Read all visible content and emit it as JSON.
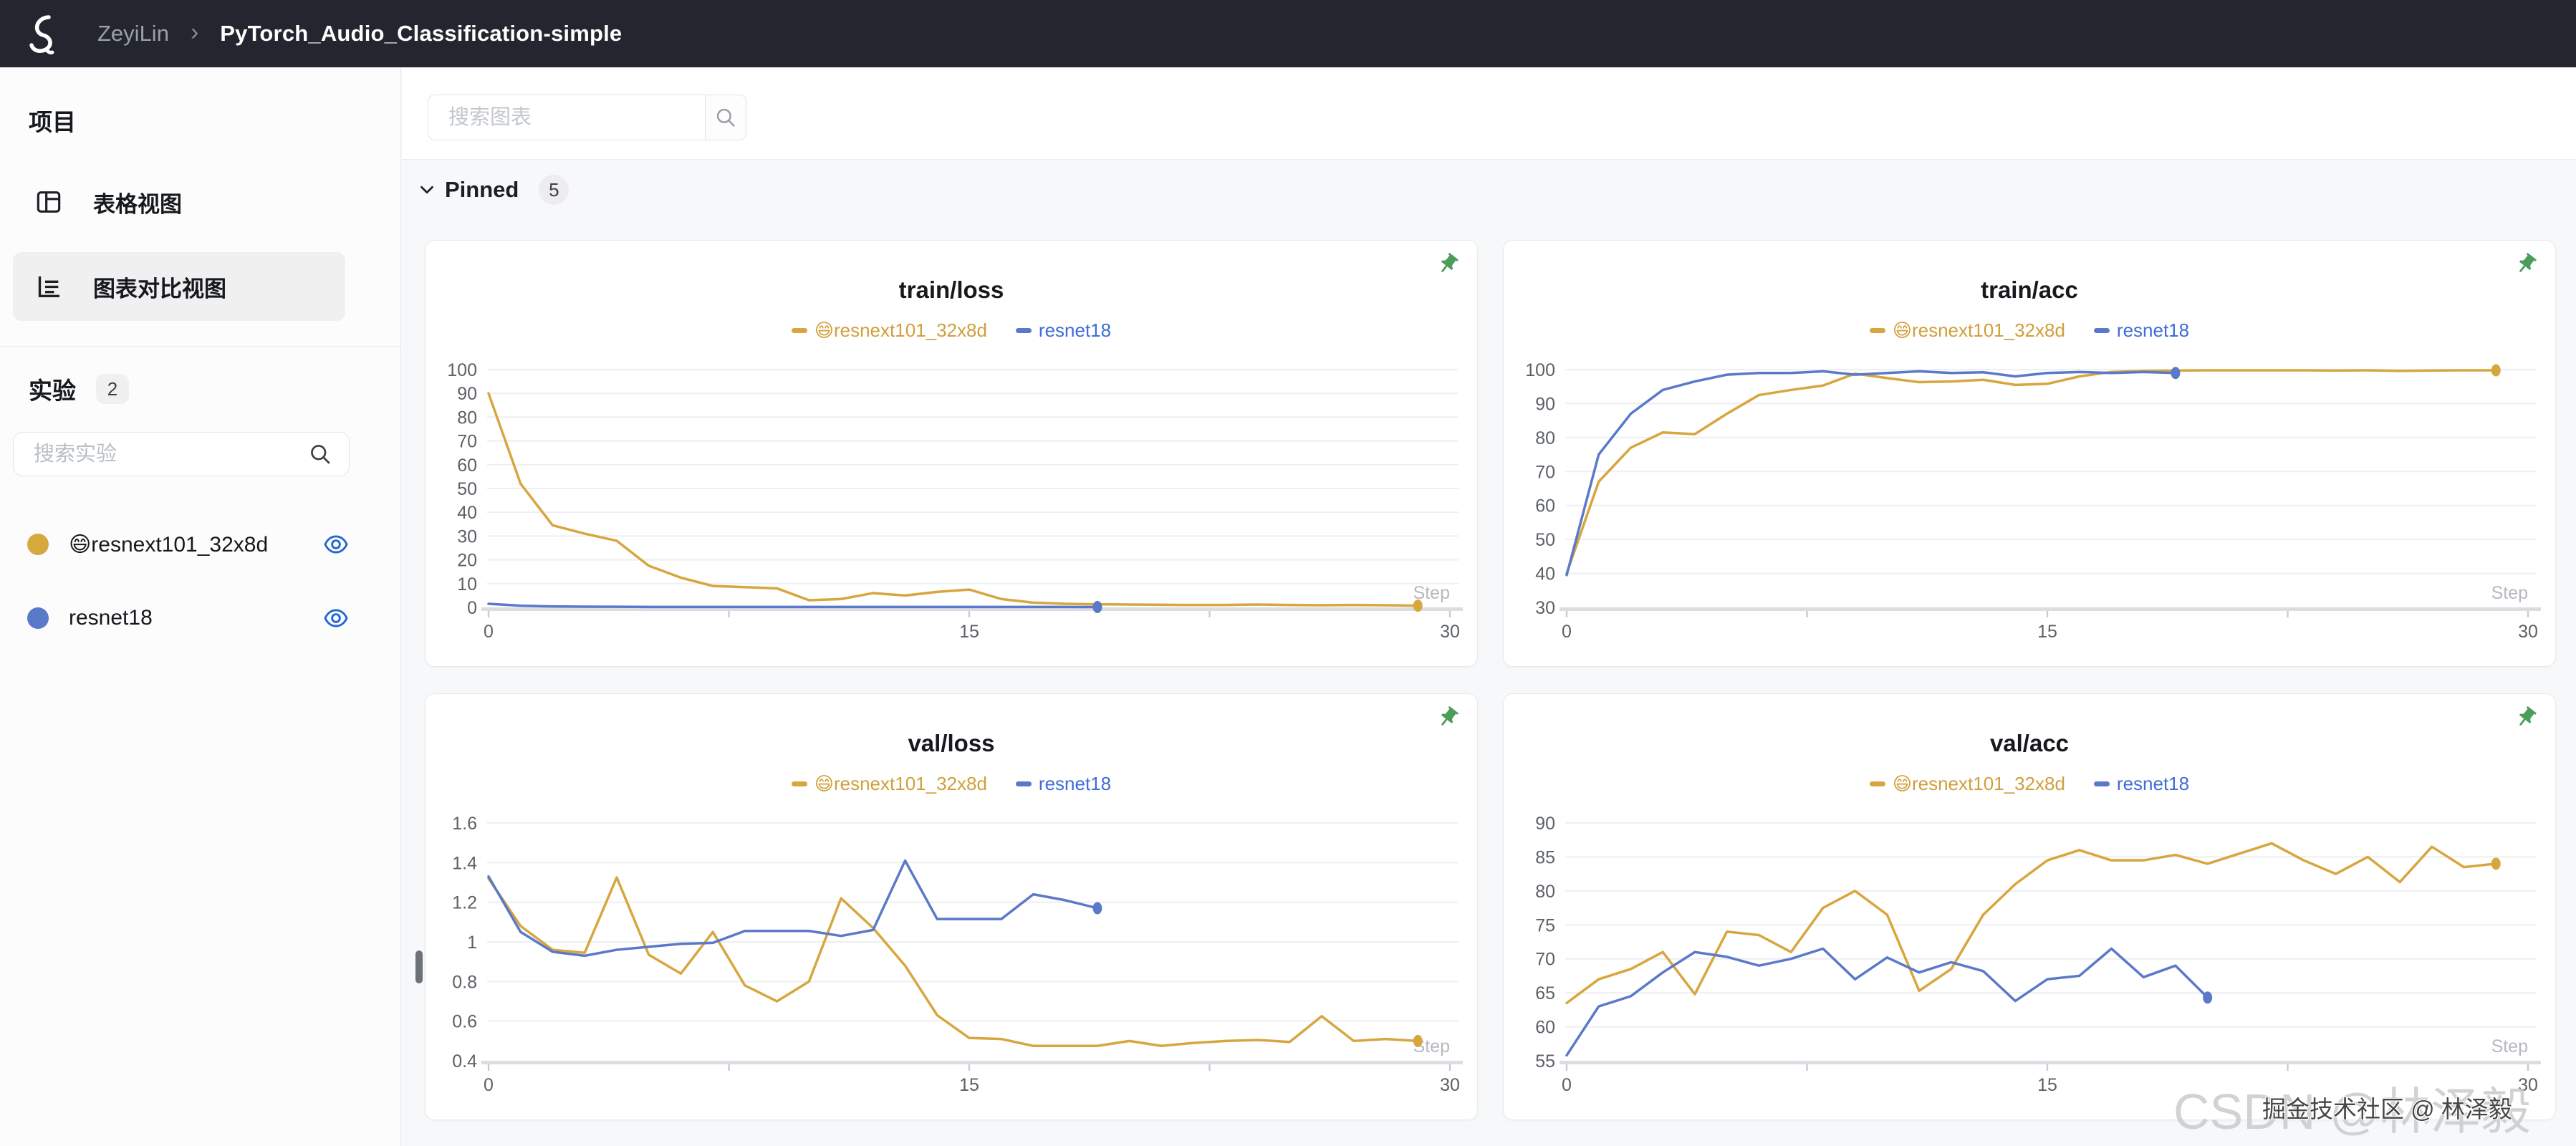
{
  "header": {
    "user": "ZeyiLin",
    "separator": "›",
    "project": "PyTorch_Audio_Classification-simple"
  },
  "sidebar": {
    "section_title": "项目",
    "nav": [
      {
        "label": "表格视图"
      },
      {
        "label": "图表对比视图"
      }
    ],
    "experiments_title": "实验",
    "experiments_count": "2",
    "search_placeholder": "搜索实验",
    "experiments": [
      {
        "name": "😄resnext101_32x8d",
        "color": "#d6a93f"
      },
      {
        "name": "resnet18",
        "color": "#5b79c9"
      }
    ]
  },
  "main": {
    "search_placeholder": "搜索图表",
    "pinned": {
      "label": "Pinned",
      "count": "5"
    }
  },
  "watermark": {
    "large": "CSDN @林泽毅",
    "small": "掘金技术社区 @ 林泽毅"
  },
  "colors": {
    "accent_yellow": "#d7a63f",
    "accent_blue": "#5b79c9",
    "legend_blue": "#3f6cd6",
    "pin_green": "#4b9e5a",
    "eye_blue": "#2166d1",
    "topbar_bg": "#24262f"
  },
  "chart_data": [
    {
      "type": "line",
      "title": "train/loss",
      "xlabel": "Step",
      "xlim": [
        0,
        30
      ],
      "ylim": [
        0,
        100
      ],
      "x_ticks": [
        0,
        15,
        30
      ],
      "x_tick_labels": [
        "0",
        "15",
        "30"
      ],
      "x_tick_marks": [
        0,
        7.5,
        15,
        22.5,
        30
      ],
      "y_ticks": [
        0,
        10,
        20,
        30,
        40,
        50,
        60,
        70,
        80,
        90,
        100
      ],
      "y_tick_labels": [
        "0",
        "10",
        "20",
        "30",
        "40",
        "50",
        "60",
        "70",
        "80",
        "90",
        "100"
      ],
      "grid": true,
      "legend_position": "top",
      "series": [
        {
          "name": "😄resnext101_32x8d",
          "color": "#d7a63f",
          "legend_color": "#d09f3b",
          "values": [
            90,
            52,
            34.5,
            31,
            28,
            17.5,
            12.5,
            9,
            8.5,
            8,
            3,
            3.5,
            6,
            5,
            6.5,
            7.5,
            3.5,
            2,
            1.5,
            1.3,
            1.2,
            1.1,
            1,
            1,
            1.2,
            1,
            0.9,
            1,
            0.9,
            0.7
          ]
        },
        {
          "name": "resnet18",
          "color": "#5b79c9",
          "legend_color": "#3f6cd6",
          "values": [
            1.5,
            0.7,
            0.4,
            0.3,
            0.25,
            0.2,
            0.2,
            0.2,
            0.2,
            0.2,
            0.2,
            0.2,
            0.2,
            0.2,
            0.2,
            0.2,
            0.2,
            0.2,
            0.18,
            0.15
          ]
        }
      ]
    },
    {
      "type": "line",
      "title": "train/acc",
      "xlabel": "Step",
      "xlim": [
        0,
        30
      ],
      "ylim": [
        30,
        100
      ],
      "x_ticks": [
        0,
        15,
        30
      ],
      "x_tick_labels": [
        "0",
        "15",
        "30"
      ],
      "x_tick_marks": [
        0,
        7.5,
        15,
        22.5,
        30
      ],
      "y_ticks": [
        30,
        40,
        50,
        60,
        70,
        80,
        90,
        100
      ],
      "y_tick_labels": [
        "30",
        "40",
        "50",
        "60",
        "70",
        "80",
        "90",
        "100"
      ],
      "grid": true,
      "legend_position": "top",
      "series": [
        {
          "name": "😄resnext101_32x8d",
          "color": "#d7a63f",
          "legend_color": "#d09f3b",
          "values": [
            40,
            67,
            77,
            81.5,
            81,
            87,
            92.5,
            94,
            95.3,
            98.8,
            97.5,
            96.3,
            96.5,
            97,
            95.5,
            95.8,
            98,
            99.3,
            99.6,
            99.7,
            99.8,
            99.8,
            99.8,
            99.8,
            99.7,
            99.8,
            99.6,
            99.7,
            99.8,
            99.8
          ]
        },
        {
          "name": "resnet18",
          "color": "#5b79c9",
          "legend_color": "#3f6cd6",
          "values": [
            39.5,
            75,
            87,
            94,
            96.5,
            98.5,
            99,
            99,
            99.5,
            98.5,
            99,
            99.5,
            99,
            99.2,
            98,
            99,
            99.3,
            99,
            99.3,
            99
          ]
        }
      ]
    },
    {
      "type": "line",
      "title": "val/loss",
      "xlabel": "Step",
      "xlim": [
        0,
        30
      ],
      "ylim": [
        0.4,
        1.6
      ],
      "x_ticks": [
        0,
        15,
        30
      ],
      "x_tick_labels": [
        "0",
        "15",
        "30"
      ],
      "x_tick_marks": [
        0,
        7.5,
        15,
        22.5,
        30
      ],
      "y_ticks": [
        0.4,
        0.6,
        0.8,
        1,
        1.2,
        1.4,
        1.6
      ],
      "y_tick_labels": [
        "0.4",
        "0.6",
        "0.8",
        "1",
        "1.2",
        "1.4",
        "1.6"
      ],
      "grid": true,
      "legend_position": "top",
      "series": [
        {
          "name": "😄resnext101_32x8d",
          "color": "#d7a63f",
          "legend_color": "#d09f3b",
          "values": [
            1.32,
            1.08,
            0.96,
            0.945,
            1.325,
            0.935,
            0.84,
            1.05,
            0.78,
            0.7,
            0.8,
            1.22,
            1.07,
            0.88,
            0.63,
            0.515,
            0.51,
            0.475,
            0.475,
            0.475,
            0.5,
            0.475,
            0.49,
            0.5,
            0.505,
            0.495,
            0.625,
            0.5,
            0.51,
            0.5
          ]
        },
        {
          "name": "resnet18",
          "color": "#5b79c9",
          "legend_color": "#3f6cd6",
          "values": [
            1.33,
            1.05,
            0.95,
            0.93,
            0.96,
            0.975,
            0.99,
            0.995,
            1.055,
            1.055,
            1.055,
            1.03,
            1.06,
            1.41,
            1.115,
            1.115,
            1.115,
            1.24,
            1.21,
            1.17
          ]
        }
      ]
    },
    {
      "type": "line",
      "title": "val/acc",
      "xlabel": "Step",
      "xlim": [
        0,
        30
      ],
      "ylim": [
        55,
        90
      ],
      "x_ticks": [
        0,
        15,
        30
      ],
      "x_tick_labels": [
        "0",
        "15",
        "30"
      ],
      "x_tick_marks": [
        0,
        7.5,
        15,
        22.5,
        30
      ],
      "y_ticks": [
        55,
        60,
        65,
        70,
        75,
        80,
        85,
        90
      ],
      "y_tick_labels": [
        "55",
        "60",
        "65",
        "70",
        "75",
        "80",
        "85",
        "90"
      ],
      "grid": true,
      "legend_position": "top",
      "series": [
        {
          "name": "😄resnext101_32x8d",
          "color": "#d7a63f",
          "legend_color": "#d09f3b",
          "values": [
            63.5,
            67,
            68.5,
            71,
            64.8,
            74,
            73.5,
            71,
            77.5,
            80,
            76.5,
            65.3,
            68.5,
            76.5,
            81,
            84.5,
            86,
            84.5,
            84.5,
            85.3,
            84,
            85.5,
            87,
            84.5,
            82.5,
            85,
            81.3,
            86.5,
            83.5,
            84
          ]
        },
        {
          "name": "resnet18",
          "color": "#5b79c9",
          "legend_color": "#3f6cd6",
          "values": [
            55.8,
            63,
            64.5,
            68,
            71,
            70.3,
            69,
            70,
            71.5,
            67,
            70.2,
            68,
            69.5,
            68.2,
            63.8,
            67,
            67.5,
            71.5,
            67.3,
            69,
            64.3
          ]
        }
      ]
    }
  ]
}
